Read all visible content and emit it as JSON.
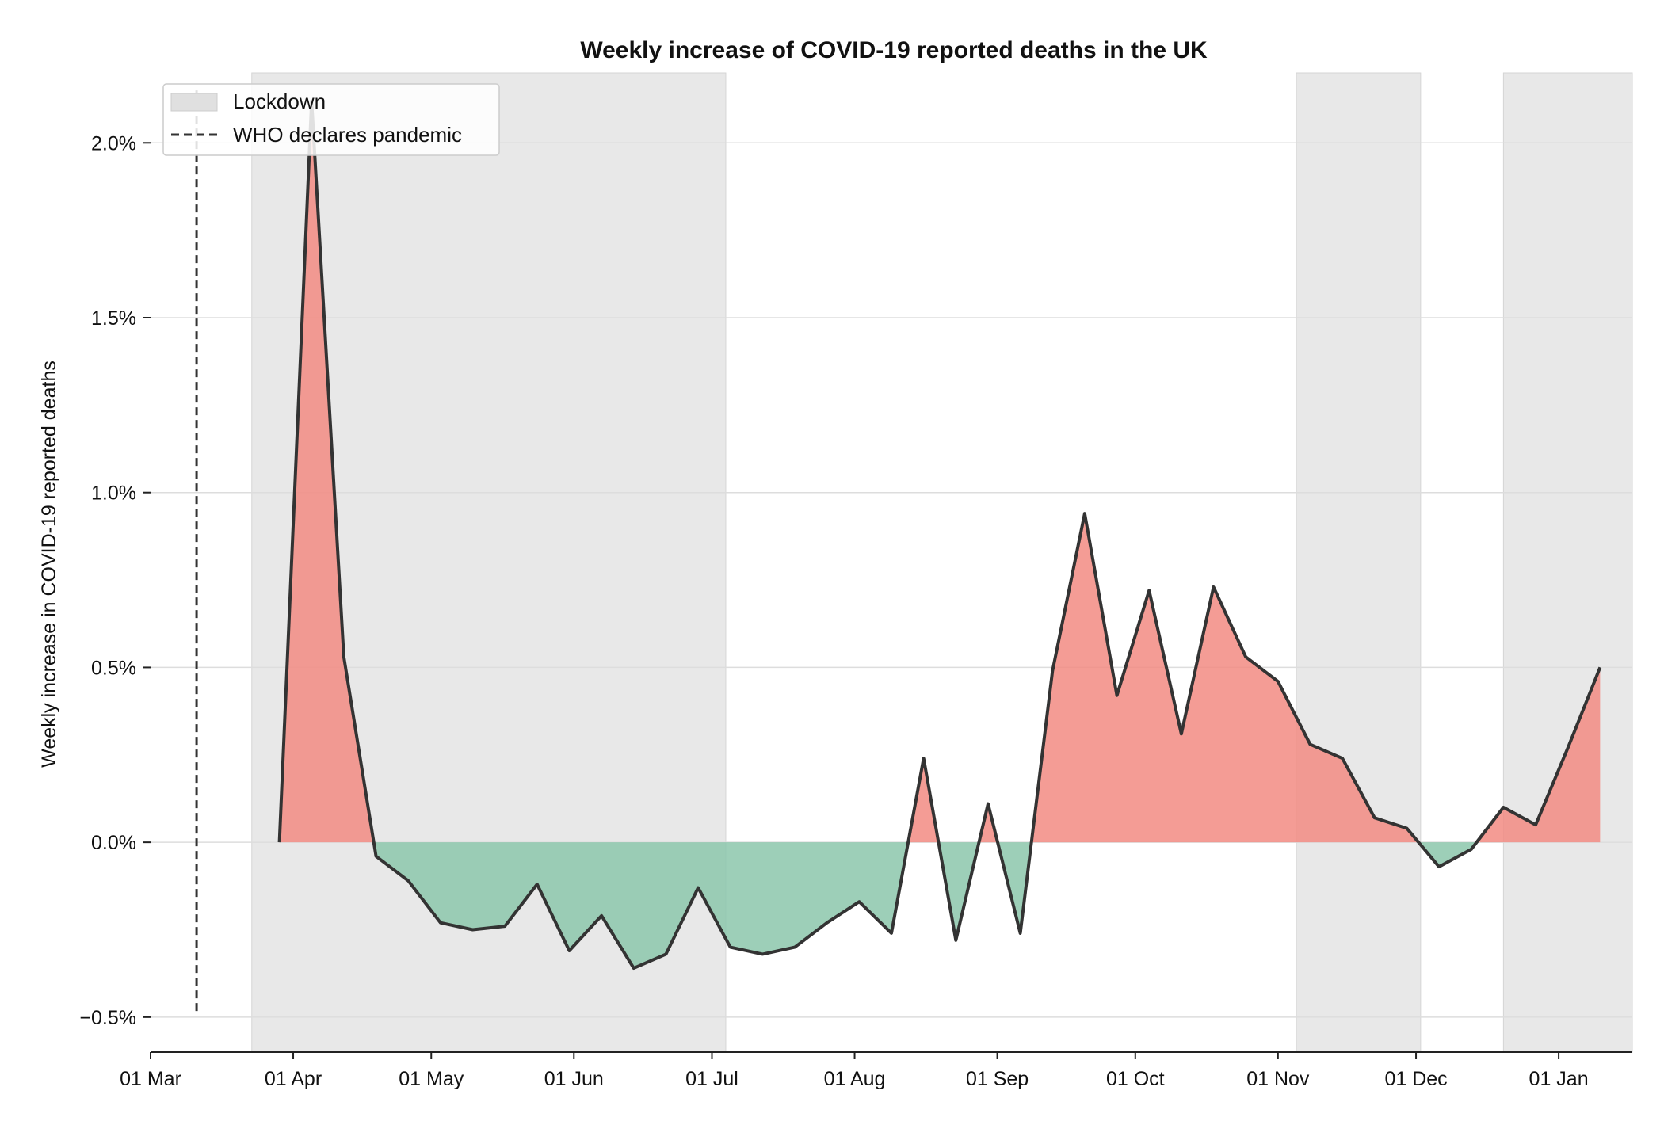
{
  "chart_data": {
    "type": "area",
    "title": "Weekly increase of COVID-19 reported deaths in the UK",
    "xlabel": "",
    "ylabel": "Weekly increase in COVID-19 reported deaths",
    "xlim": [
      "2020-03-01",
      "2021-01-17"
    ],
    "ylim": [
      -0.6,
      2.2
    ],
    "y_ticks": [
      -0.5,
      0.0,
      0.5,
      1.0,
      1.5,
      2.0
    ],
    "y_tick_labels": [
      "−0.5%",
      "0.0%",
      "0.5%",
      "1.0%",
      "1.5%",
      "2.0%"
    ],
    "x_ticks": [
      "2020-03-01",
      "2020-04-01",
      "2020-05-01",
      "2020-06-01",
      "2020-07-01",
      "2020-08-01",
      "2020-09-01",
      "2020-10-01",
      "2020-11-01",
      "2020-12-01",
      "2021-01-01"
    ],
    "x_tick_labels": [
      "01 Mar",
      "01 Apr",
      "01 May",
      "01 Jun",
      "01 Jul",
      "01 Aug",
      "01 Sep",
      "01 Oct",
      "01 Nov",
      "01 Dec",
      "01 Jan"
    ],
    "grid": "horizontal",
    "legend": {
      "placement": "top-left",
      "entries": [
        "Lockdown",
        "WHO declares pandemic"
      ]
    },
    "lockdowns": [
      {
        "start": "2020-03-23",
        "end": "2020-07-04"
      },
      {
        "start": "2020-11-05",
        "end": "2020-12-02"
      },
      {
        "start": "2020-12-20",
        "end": "2021-01-17"
      }
    ],
    "pandemic_declared": "2020-03-11",
    "series": [
      {
        "x": [
          "2020-03-29",
          "2020-04-05",
          "2020-04-12",
          "2020-04-19",
          "2020-04-26",
          "2020-05-03",
          "2020-05-10",
          "2020-05-17",
          "2020-05-24",
          "2020-05-31",
          "2020-06-07",
          "2020-06-14",
          "2020-06-21",
          "2020-06-28",
          "2020-07-05",
          "2020-07-12",
          "2020-07-19",
          "2020-07-26",
          "2020-08-02",
          "2020-08-09",
          "2020-08-16",
          "2020-08-23",
          "2020-08-30",
          "2020-09-06",
          "2020-09-13",
          "2020-09-20",
          "2020-09-27",
          "2020-10-04",
          "2020-10-11",
          "2020-10-18",
          "2020-10-25",
          "2020-11-01",
          "2020-11-08",
          "2020-11-15",
          "2020-11-22",
          "2020-11-29",
          "2020-12-06",
          "2020-12-13",
          "2020-12-20",
          "2020-12-27",
          "2021-01-03",
          "2021-01-10"
        ],
        "values": [
          0.0,
          2.12,
          0.53,
          -0.04,
          -0.11,
          -0.23,
          -0.25,
          -0.24,
          -0.12,
          -0.31,
          -0.21,
          -0.36,
          -0.32,
          -0.13,
          -0.3,
          -0.32,
          -0.3,
          -0.23,
          -0.17,
          -0.26,
          0.24,
          -0.28,
          0.11,
          -0.26,
          0.49,
          0.94,
          0.42,
          0.72,
          0.31,
          0.73,
          0.53,
          0.46,
          0.28,
          0.24,
          0.07,
          0.04,
          -0.07,
          -0.02,
          0.1,
          0.05,
          0.27,
          0.5
        ]
      }
    ],
    "colors": {
      "line": "#333333",
      "positive_fill": "#f28b82",
      "negative_fill": "#8cc7ac",
      "lockdown_band": "#e0e0e0",
      "grid": "#dddddd",
      "who_line": "#333333"
    }
  }
}
